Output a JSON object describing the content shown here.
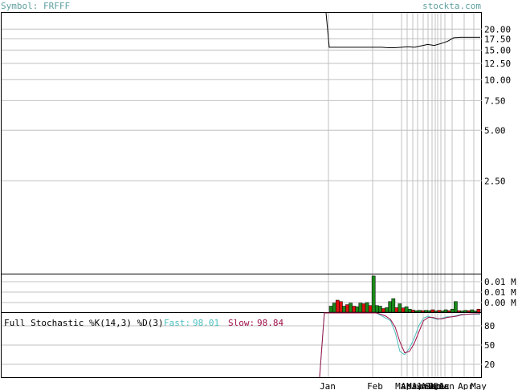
{
  "header": {
    "symbol_label": "Symbol: FRFFF",
    "site": "stockta.com"
  },
  "colors": {
    "header_text": "#5f9f9f",
    "grid": "#c0c0c0",
    "price_line": "#000000",
    "volume_up": "#1a8a1a",
    "volume_down": "#e01010",
    "fast_line": "#4cc0c0",
    "slow_line": "#a0104a"
  },
  "stochastic": {
    "title": "Full Stochastic %K(14,3) %D(3)",
    "fast_label": "Fast:",
    "fast_value": "98.01",
    "slow_label": "Slow:",
    "slow_value": "98.84"
  },
  "chart_data": [
    {
      "type": "line",
      "panel": "price",
      "y_scale": "log",
      "y_ticks": [
        "20.00",
        "17.50",
        "15.00",
        "12.50",
        "10.00",
        "7.50",
        "5.00",
        "2.50"
      ],
      "y_tick_values": [
        20,
        17.5,
        15,
        12.5,
        10,
        7.5,
        5,
        2.5
      ],
      "ylim": [
        0.7,
        25
      ],
      "x_labels": [
        "Jan",
        "Feb",
        "Mar",
        "Apr",
        "May",
        "Jun",
        "Jul",
        "Aug",
        "Sep",
        "Oct",
        "Nov",
        "Dec",
        "Jan",
        "Apr",
        "May"
      ],
      "series": [
        {
          "values": [
            40,
            15.6,
            15.6,
            15.6,
            15.6,
            15.6,
            15.6,
            15.6,
            15.6,
            15.6,
            15.5,
            15.5,
            15.6,
            15.7,
            15.6,
            15.9,
            16.2,
            16.0,
            16.4,
            16.9,
            17.8,
            17.9,
            17.9,
            17.9,
            17.9
          ]
        }
      ]
    },
    {
      "type": "bar",
      "panel": "volume",
      "y_ticks": [
        "0.01 M",
        "0.01 M",
        "0.00 M"
      ],
      "values": [
        0.002,
        0.003,
        0.004,
        0.0035,
        0.002,
        0.0025,
        0.003,
        0.002,
        0.0018,
        0.003,
        0.0028,
        0.0032,
        0.0022,
        0.012,
        0.0022,
        0.002,
        0.0012,
        0.0015,
        0.0035,
        0.0045,
        0.0015,
        0.0028,
        0.0014,
        0.0018,
        0.001,
        0.0007,
        0.0005,
        0.0006,
        0.0005,
        0.0006,
        0.0005,
        0.0008,
        0.0004,
        0.0006,
        0.0004,
        0.0008,
        0.0005,
        0.001,
        0.0035,
        0.0005,
        0.0004,
        0.0006,
        0.0005,
        0.0008,
        0.0004,
        0.001
      ],
      "direction": [
        "up",
        "up",
        "down",
        "down",
        "up",
        "down",
        "up",
        "down",
        "up",
        "up",
        "down",
        "up",
        "down",
        "up",
        "up",
        "up",
        "down",
        "up",
        "up",
        "up",
        "down",
        "up",
        "down",
        "up",
        "up",
        "down",
        "up",
        "up",
        "down",
        "up",
        "up",
        "down",
        "up",
        "down",
        "up",
        "up",
        "down",
        "up",
        "up",
        "down",
        "up",
        "up",
        "down",
        "up",
        "up",
        "down"
      ],
      "ylim": [
        0,
        0.0125
      ]
    },
    {
      "type": "line",
      "panel": "stochastic",
      "y_ticks": [
        "80",
        "50",
        "20"
      ],
      "y_tick_values": [
        80,
        50,
        20
      ],
      "ylim": [
        0,
        100
      ],
      "series": [
        {
          "name": "Fast",
          "values": [
            0,
            100,
            100,
            100,
            100,
            100,
            100,
            100,
            100,
            100,
            100,
            100,
            100,
            96,
            92,
            88,
            70,
            40,
            35,
            45,
            60,
            80,
            92,
            95,
            92,
            90,
            92,
            94,
            94,
            96,
            98,
            98,
            98,
            98,
            98.01
          ]
        },
        {
          "name": "Slow",
          "values": [
            0,
            100,
            100,
            100,
            100,
            100,
            100,
            100,
            100,
            100,
            100,
            100,
            100,
            98,
            95,
            90,
            78,
            55,
            38,
            40,
            52,
            70,
            88,
            93,
            93,
            91,
            91,
            93,
            94,
            95,
            97,
            98,
            98.5,
            98.8,
            98.84
          ]
        }
      ]
    }
  ]
}
